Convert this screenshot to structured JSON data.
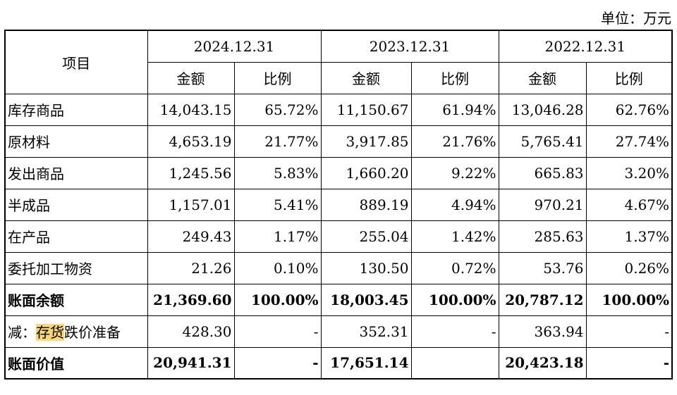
{
  "unit_label": "单位：万元",
  "table": {
    "item_header": "项目",
    "periods": [
      "2024.12.31",
      "2023.12.31",
      "2022.12.31"
    ],
    "sub_headers": [
      "金额",
      "比例"
    ],
    "rows": [
      {
        "label": "库存商品",
        "cells": [
          "14,043.15",
          "65.72%",
          "11,150.67",
          "61.94%",
          "13,046.28",
          "62.76%"
        ]
      },
      {
        "label": "原材料",
        "cells": [
          "4,653.19",
          "21.77%",
          "3,917.85",
          "21.76%",
          "5,765.41",
          "27.74%"
        ]
      },
      {
        "label": "发出商品",
        "cells": [
          "1,245.56",
          "5.83%",
          "1,660.20",
          "9.22%",
          "665.83",
          "3.20%"
        ]
      },
      {
        "label": "半成品",
        "cells": [
          "1,157.01",
          "5.41%",
          "889.19",
          "4.94%",
          "970.21",
          "4.67%"
        ]
      },
      {
        "label": "在产品",
        "cells": [
          "249.43",
          "1.17%",
          "255.04",
          "1.42%",
          "285.63",
          "1.37%"
        ]
      },
      {
        "label": "委托加工物资",
        "cells": [
          "21.26",
          "0.10%",
          "130.50",
          "0.72%",
          "53.76",
          "0.26%"
        ]
      },
      {
        "label": "账面余额",
        "cells": [
          "21,369.60",
          "100.00%",
          "18,003.45",
          "100.00%",
          "20,787.12",
          "100.00%"
        ]
      },
      {
        "label_prefix": "减：",
        "label_highlight": "存货",
        "label_suffix": "跌价准备",
        "cells": [
          "428.30",
          "-",
          "352.31",
          "-",
          "363.94",
          "-"
        ]
      },
      {
        "label": "账面价值",
        "cells": [
          "20,941.31",
          "-",
          "17,651.14",
          "",
          "20,423.18",
          "-"
        ]
      }
    ]
  }
}
